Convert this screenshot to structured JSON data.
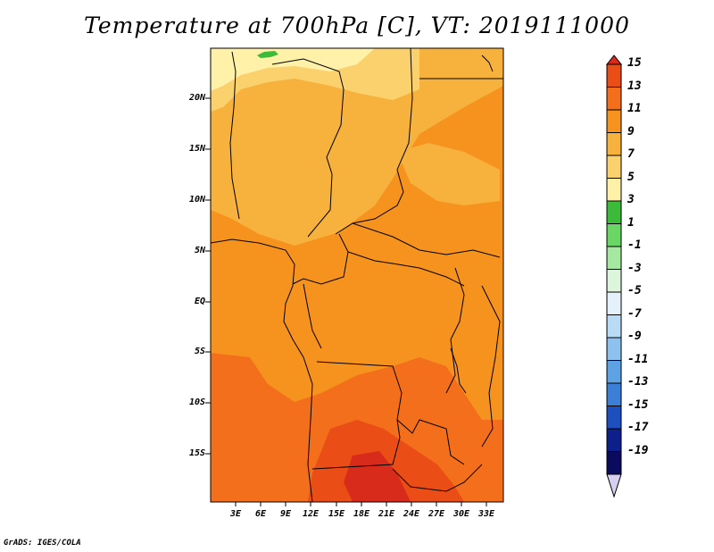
{
  "title": "Temperature at 700hPa [C], VT: 2019111000",
  "credit": "GrADS: IGES/COLA",
  "map": {
    "lat_labels": [
      "20N",
      "15N",
      "10N",
      "5N",
      "EQ",
      "5S",
      "10S",
      "15S"
    ],
    "lon_labels": [
      "3E",
      "6E",
      "9E",
      "12E",
      "15E",
      "18E",
      "21E",
      "24E",
      "27E",
      "30E",
      "33E"
    ]
  },
  "colorbar": {
    "labels": [
      "15",
      "13",
      "11",
      "9",
      "7",
      "5",
      "3",
      "1",
      "-1",
      "-3",
      "-5",
      "-7",
      "-9",
      "-11",
      "-13",
      "-15",
      "-17",
      "-19"
    ],
    "colors": [
      "#d92b1b",
      "#ea4d16",
      "#f36f1c",
      "#f6931e",
      "#f7b23d",
      "#fbd16d",
      "#fff1a8",
      "#3cbb3b",
      "#6ad666",
      "#a5e8a0",
      "#dcf6dc",
      "#e4f1fb",
      "#b9dbf6",
      "#8dc2ef",
      "#5da2e5",
      "#3b7fd9",
      "#1e4fbe",
      "#0c1f8a",
      "#0a0a5e",
      "#d8d0f0"
    ]
  }
}
